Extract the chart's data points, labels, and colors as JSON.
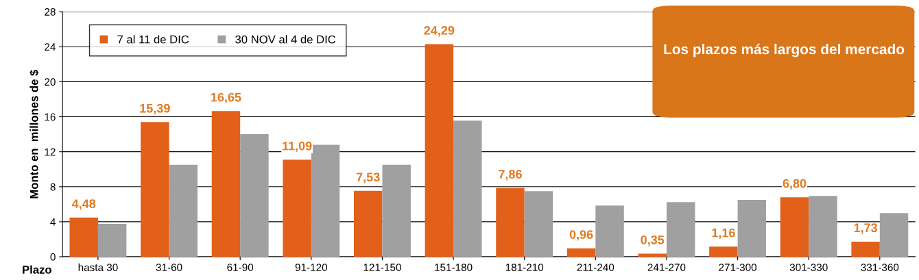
{
  "chart_data": {
    "type": "bar",
    "xlabel": "Plazo",
    "ylabel": "Monto en  millones de $",
    "categories": [
      "hasta 30",
      "31-60",
      "61-90",
      "91-120",
      "121-150",
      "151-180",
      "181-210",
      "211-240",
      "241-270",
      "271-300",
      "301-330",
      "331-360"
    ],
    "series": [
      {
        "name": "7 al 11 de DIC",
        "color": "#e2601a",
        "values": [
          4.48,
          15.39,
          16.65,
          11.09,
          7.53,
          24.29,
          7.86,
          0.96,
          0.35,
          1.16,
          6.8,
          1.73
        ],
        "value_labels": [
          "4,48",
          "15,39",
          "16,65",
          "11,09",
          "7,53",
          "24,29",
          "7,86",
          "0,96",
          "0,35",
          "1,16",
          "6,80",
          "1,73"
        ]
      },
      {
        "name": "30 NOV al 4 de DIC",
        "color": "#a0a0a0",
        "values": [
          3.75,
          10.5,
          14.0,
          12.8,
          10.5,
          15.55,
          7.5,
          5.85,
          6.25,
          6.5,
          6.95,
          5.0
        ]
      }
    ],
    "ylim": [
      0,
      28
    ],
    "yticks": [
      0,
      4,
      8,
      12,
      16,
      20,
      24,
      28
    ],
    "grid": "y",
    "legend": "top left",
    "annotations": [
      "Los plazos más largos del mercado"
    ]
  }
}
